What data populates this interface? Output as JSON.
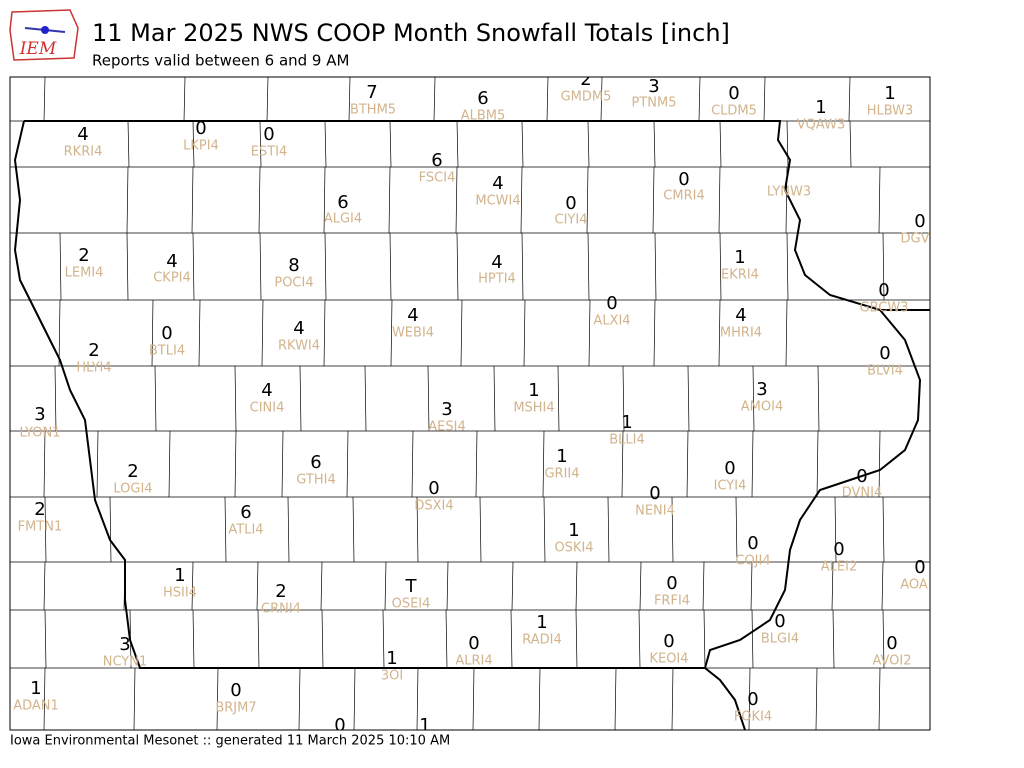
{
  "header": {
    "logo": "IEM",
    "title": "11 Mar 2025 NWS COOP Month Snowfall Totals [inch]",
    "subtitle": "Reports valid between 6 and 9 AM"
  },
  "stations": [
    {
      "id": "BTHM5",
      "value": 7
    },
    {
      "id": "ALBM5",
      "value": 6
    },
    {
      "id": "GMDM5",
      "value": 2
    },
    {
      "id": "PTNM5",
      "value": 3
    },
    {
      "id": "CLDM5",
      "value": 0
    },
    {
      "id": "VQAW3",
      "value": 1
    },
    {
      "id": "HLBW3",
      "value": 1
    },
    {
      "id": "RKRI4",
      "value": 4
    },
    {
      "id": "LKPI4",
      "value": 0
    },
    {
      "id": "ESTI4",
      "value": 0
    },
    {
      "id": "FSCI4",
      "value": 6
    },
    {
      "id": "MCWI4",
      "value": 4
    },
    {
      "id": "CIYI4",
      "value": 0
    },
    {
      "id": "CMRI4",
      "value": 0
    },
    {
      "id": "LYNW3"
    },
    {
      "id": "ALGI4",
      "value": 6
    },
    {
      "id": "DGV",
      "value": 0
    },
    {
      "id": "LEMI4",
      "value": 2
    },
    {
      "id": "CKPI4",
      "value": 4
    },
    {
      "id": "POCI4",
      "value": 8
    },
    {
      "id": "HPTI4",
      "value": 4
    },
    {
      "id": "EKRI4",
      "value": 1
    },
    {
      "id": "GBCW3",
      "value": 0
    },
    {
      "id": "ALXI4",
      "value": 0
    },
    {
      "id": "WEBI4",
      "value": 4
    },
    {
      "id": "RKWI4",
      "value": 4
    },
    {
      "id": "MHRI4",
      "value": 4
    },
    {
      "id": "BTLI4",
      "value": 0
    },
    {
      "id": "HLYI4",
      "value": 2
    },
    {
      "id": "BLVI4",
      "value": 0
    },
    {
      "id": "CINI4",
      "value": 4
    },
    {
      "id": "MSHI4",
      "value": 1
    },
    {
      "id": "AMOI4",
      "value": 3
    },
    {
      "id": "AESI4",
      "value": 3
    },
    {
      "id": "LYON1",
      "value": 3
    },
    {
      "id": "BLLI4",
      "value": 1
    },
    {
      "id": "GTHI4",
      "value": 6
    },
    {
      "id": "GRII4",
      "value": 1
    },
    {
      "id": "LOGI4",
      "value": 2
    },
    {
      "id": "ICYI4",
      "value": 0
    },
    {
      "id": "DVNI4",
      "value": 0
    },
    {
      "id": "DSXI4",
      "value": 0
    },
    {
      "id": "NENI4",
      "value": 0
    },
    {
      "id": "FMTN1",
      "value": 2
    },
    {
      "id": "ATLI4",
      "value": 6
    },
    {
      "id": "OSKI4",
      "value": 1
    },
    {
      "id": "COJI4",
      "value": 0
    },
    {
      "id": "ALEI2",
      "value": 0
    },
    {
      "id": "AOA",
      "value": 0
    },
    {
      "id": "HSII4",
      "value": 1
    },
    {
      "id": "OSEI4",
      "value": "T"
    },
    {
      "id": "CRNI4",
      "value": 2
    },
    {
      "id": "FRFI4",
      "value": 0
    },
    {
      "id": "RADI4",
      "value": 1
    },
    {
      "id": "BLGI4",
      "value": 0
    },
    {
      "id": "ALRI4",
      "value": 0
    },
    {
      "id": "KEOI4",
      "value": 0
    },
    {
      "id": "NCYN1",
      "value": 3
    },
    {
      "id": "AVOI2",
      "value": 0
    },
    {
      "id": "3OI",
      "value": 1
    },
    {
      "id": "ADAN1",
      "value": 1
    },
    {
      "id": "BRJM7",
      "value": 0
    },
    {
      "id": "FOKI4",
      "value": 0
    },
    {
      "value": 0
    },
    {
      "value": 1
    }
  ],
  "footer": "Iowa Environmental Mesonet :: generated 11 March 2025 10:10 AM"
}
